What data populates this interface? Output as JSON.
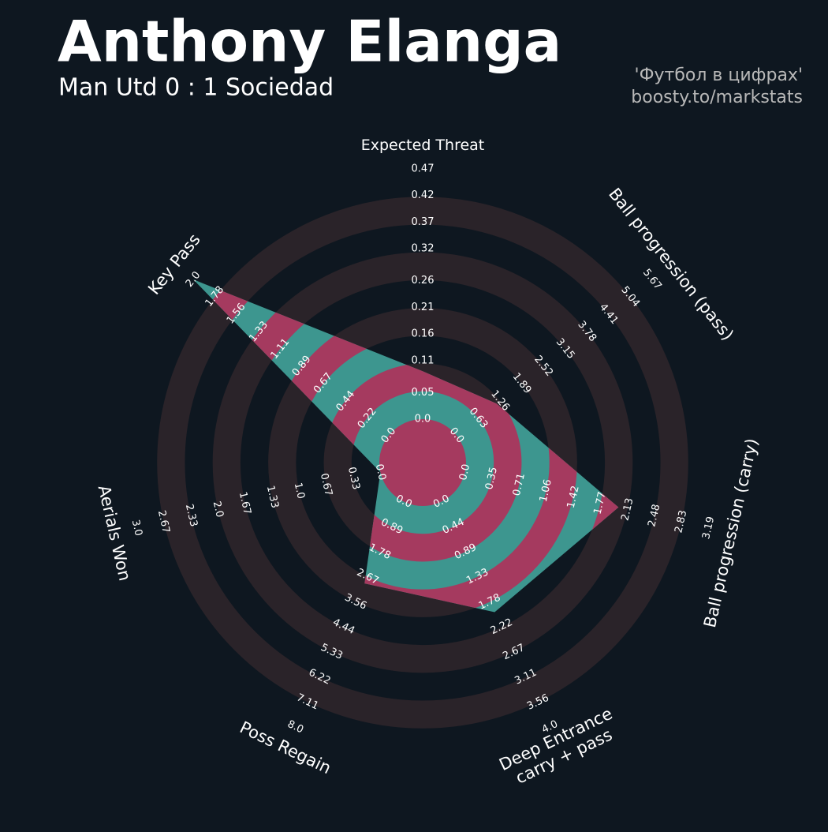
{
  "chart_data": {
    "type": "radar",
    "title": "Anthony Elanga",
    "subtitle": "Man Utd 0 : 1 Sociedad",
    "credits": [
      "'Футбол в цифрах'",
      "boosty.to/markstats"
    ],
    "params": [
      {
        "label": [
          "Expected Threat"
        ],
        "ticks": [
          {
            "value": 0,
            "label": "0.0"
          },
          0.05,
          0.11,
          0.16,
          0.21,
          0.26,
          0.32,
          0.37,
          0.42,
          0.47
        ]
      },
      {
        "label": [
          "Ball progression (pass)"
        ],
        "ticks": [
          {
            "value": 0,
            "label": "0.0"
          },
          0.63,
          1.26,
          1.89,
          2.52,
          3.15,
          3.78,
          4.41,
          5.04,
          5.67
        ]
      },
      {
        "label": [
          "Ball progression (carry)"
        ],
        "ticks": [
          {
            "value": 0,
            "label": "0.0"
          },
          0.35,
          0.71,
          1.06,
          1.42,
          1.77,
          2.13,
          2.48,
          2.83,
          3.19
        ]
      },
      {
        "label": [
          "Deep Entrance",
          "carry + pass"
        ],
        "ticks": [
          {
            "value": 0,
            "label": "0.0"
          },
          0.44,
          0.89,
          1.33,
          1.78,
          2.22,
          2.67,
          3.11,
          3.56,
          {
            "value": 4,
            "label": "4.0"
          }
        ]
      },
      {
        "label": [
          "Poss Regain"
        ],
        "ticks": [
          {
            "value": 0,
            "label": "0.0"
          },
          0.89,
          1.78,
          2.67,
          3.56,
          4.44,
          5.33,
          6.22,
          7.11,
          {
            "value": 8,
            "label": "8.0"
          }
        ]
      },
      {
        "label": [
          "Aerials Won"
        ],
        "ticks": [
          {
            "value": 0,
            "label": "0.0"
          },
          0.33,
          0.67,
          {
            "value": 1,
            "label": "1.0"
          },
          1.33,
          1.67,
          {
            "value": 2,
            "label": "2.0"
          },
          2.33,
          2.67,
          {
            "value": 3,
            "label": "3.0"
          }
        ]
      },
      {
        "label": [
          "Key Pass"
        ],
        "ticks": [
          {
            "value": 0,
            "label": "0.0"
          },
          0.22,
          0.44,
          0.67,
          0.89,
          1.11,
          1.33,
          1.56,
          1.78,
          {
            "value": 2,
            "label": "2.0"
          }
        ]
      }
    ],
    "values": [
      0.09,
      1.16,
      2.01,
      1.96,
      2.9,
      0,
      2.0
    ],
    "colors": {
      "polygon": "#3d968f",
      "polygon_alt": "#a53a5f",
      "rings": "#2a2329",
      "background": "#0e1720"
    }
  }
}
